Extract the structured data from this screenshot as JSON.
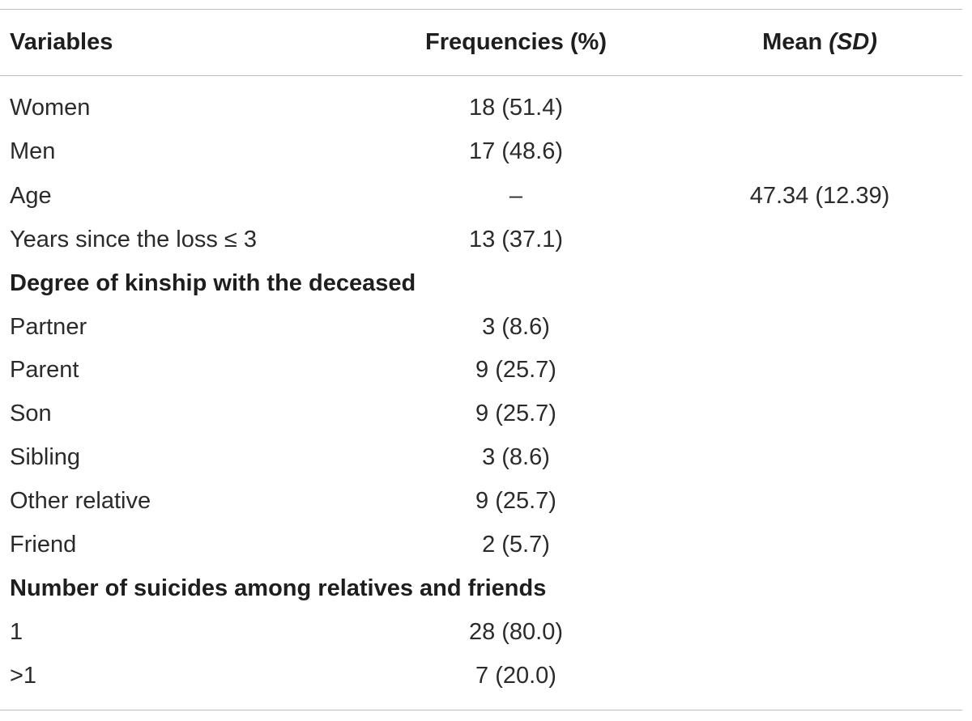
{
  "table": {
    "header": {
      "variables": "Variables",
      "frequencies": "Frequencies (%)",
      "mean_prefix": "Mean ",
      "mean_sd": "(SD)"
    },
    "rows": [
      {
        "variable": "Women",
        "frequency": "18 (51.4)",
        "mean": ""
      },
      {
        "variable": "Men",
        "frequency": "17 (48.6)",
        "mean": ""
      },
      {
        "variable": "Age",
        "frequency": "–",
        "mean": "47.34 (12.39)"
      },
      {
        "variable": "Years since the loss ≤ 3",
        "frequency": "13 (37.1)",
        "mean": ""
      },
      {
        "variable": "Degree of kinship with the deceased",
        "frequency": "",
        "mean": ""
      },
      {
        "variable": "Partner",
        "frequency": "3 (8.6)",
        "mean": ""
      },
      {
        "variable": "Parent",
        "frequency": "9 (25.7)",
        "mean": ""
      },
      {
        "variable": "Son",
        "frequency": "9 (25.7)",
        "mean": ""
      },
      {
        "variable": "Sibling",
        "frequency": "3 (8.6)",
        "mean": ""
      },
      {
        "variable": "Other relative",
        "frequency": "9 (25.7)",
        "mean": ""
      },
      {
        "variable": "Friend",
        "frequency": "2 (5.7)",
        "mean": ""
      },
      {
        "variable": "Number of suicides among relatives and friends",
        "frequency": "",
        "mean": ""
      },
      {
        "variable": "1",
        "frequency": "28 (80.0)",
        "mean": ""
      },
      {
        "variable": ">1",
        "frequency": "7 (20.0)",
        "mean": ""
      }
    ]
  }
}
